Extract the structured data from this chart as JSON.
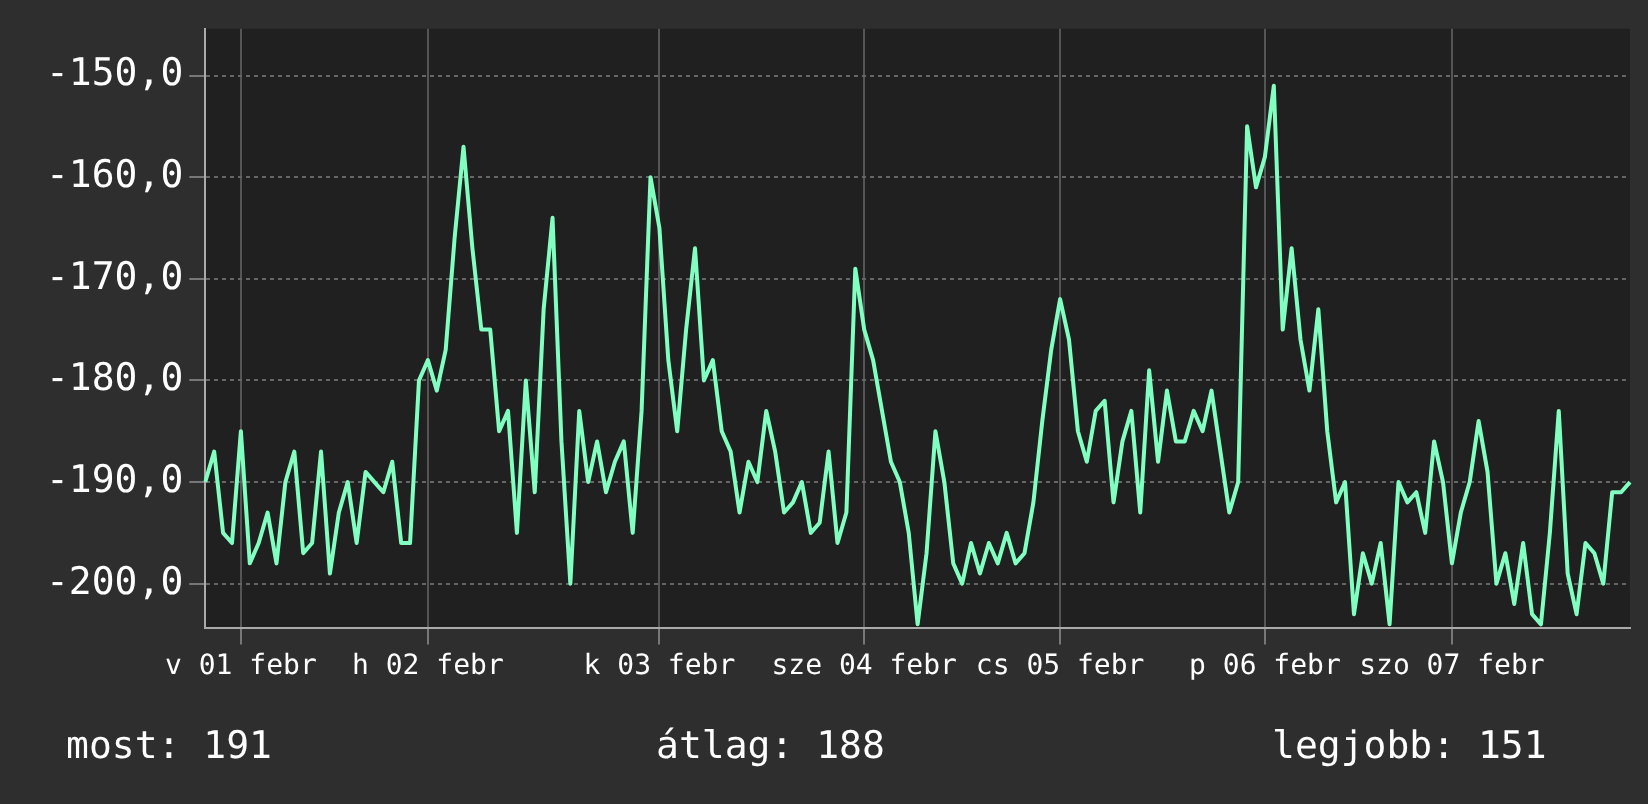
{
  "chart_data": {
    "type": "line",
    "categories": [
      null,
      null,
      null,
      null,
      "v 01 febr",
      null,
      null,
      null,
      null,
      null,
      null,
      null,
      null,
      null,
      null,
      null,
      null,
      null,
      null,
      null,
      null,
      null,
      null,
      null,
      null,
      "h 02 febr",
      null,
      null,
      null,
      null,
      null,
      null,
      null,
      null,
      null,
      null,
      null,
      null,
      null,
      null,
      null,
      null,
      null,
      null,
      null,
      null,
      null,
      null,
      null,
      null,
      null,
      "k 03 febr",
      null,
      null,
      null,
      null,
      null,
      null,
      null,
      null,
      null,
      null,
      null,
      null,
      null,
      null,
      null,
      null,
      null,
      null,
      null,
      null,
      null,
      null,
      "sze 04 febr",
      null,
      null,
      null,
      null,
      null,
      null,
      null,
      null,
      null,
      null,
      null,
      null,
      null,
      null,
      null,
      null,
      null,
      null,
      null,
      null,
      null,
      "cs 05 febr",
      null,
      null,
      null,
      null,
      null,
      null,
      null,
      null,
      null,
      null,
      null,
      null,
      null,
      null,
      null,
      null,
      null,
      null,
      null,
      null,
      null,
      null,
      "p 06 febr",
      null,
      null,
      null,
      null,
      null,
      null,
      null,
      null,
      null,
      null,
      null,
      null,
      null,
      null,
      null,
      null,
      null,
      null,
      null,
      null,
      "szo 07 febr",
      null,
      null,
      null,
      null,
      null,
      null,
      null,
      null,
      null,
      null,
      null,
      null,
      null,
      null,
      null,
      null,
      null,
      null,
      null,
      null
    ],
    "series": [
      {
        "color": "#80ffc0",
        "values": [
          -190,
          -187,
          -195,
          -196,
          -185,
          -198,
          -196,
          -193,
          -198,
          -190,
          -187,
          -197,
          -196,
          -187,
          -199,
          -193,
          -190,
          -196,
          -189,
          -190,
          -191,
          -188,
          -196,
          -196,
          -180,
          -178,
          -181,
          -177,
          -166,
          -157,
          -167,
          -175,
          -175,
          -185,
          -183,
          -195,
          -180,
          -191,
          -173,
          -164,
          -186,
          -200,
          -183,
          -190,
          -186,
          -191,
          -188,
          -186,
          -195,
          -183,
          -160,
          -165,
          -178,
          -185,
          -175,
          -167,
          -180,
          -178,
          -185,
          -187,
          -193,
          -188,
          -190,
          -183,
          -187,
          -193,
          -192,
          -190,
          -195,
          -194,
          -187,
          -196,
          -193,
          -169,
          -175,
          -178,
          -183,
          -188,
          -190,
          -195,
          -204,
          -197,
          -185,
          -190,
          -198,
          -200,
          -196,
          -199,
          -196,
          -198,
          -195,
          -198,
          -197,
          -192,
          -184,
          -177,
          -172,
          -176,
          -185,
          -188,
          -183,
          -182,
          -192,
          -186,
          -183,
          -193,
          -179,
          -188,
          -181,
          -186,
          -186,
          -183,
          -185,
          -181,
          -187,
          -193,
          -190,
          -155,
          -161,
          -158,
          -151,
          -175,
          -167,
          -176,
          -181,
          -173,
          -185,
          -192,
          -190,
          -203,
          -197,
          -200,
          -196,
          -204,
          -190,
          -192,
          -191,
          -195,
          -186,
          -190,
          -198,
          -193,
          -190,
          -184,
          -189,
          -200,
          -197,
          -202,
          -196,
          -203,
          -204,
          -195,
          -183,
          -199,
          -203,
          -196,
          -197,
          -200,
          -191,
          -191,
          -190
        ]
      }
    ],
    "ylim": [
      -204.4,
      -145.4
    ],
    "yticks": [
      {
        "value": -150,
        "label": "-150,0"
      },
      {
        "value": -160,
        "label": "-160,0"
      },
      {
        "value": -170,
        "label": "-170,0"
      },
      {
        "value": -180,
        "label": "-180,0"
      },
      {
        "value": -190,
        "label": "-190,0"
      },
      {
        "value": -200,
        "label": "-200,0"
      }
    ],
    "grid": true,
    "annotations": [
      "most: 191",
      "átlag: 188",
      "legjobb: 151"
    ]
  }
}
